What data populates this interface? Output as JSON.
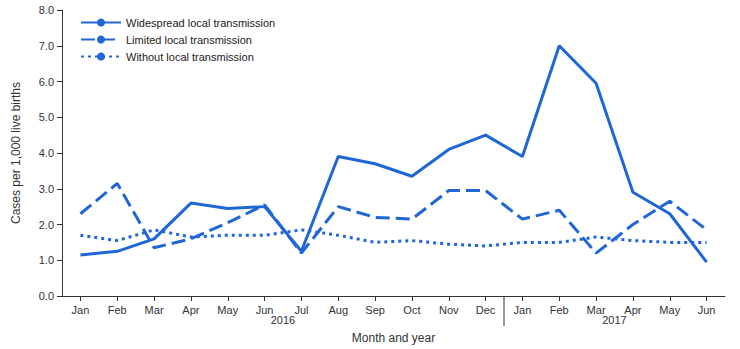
{
  "chart_data": {
    "type": "line",
    "x_label": "Month and year",
    "y_label": "Cases per 1,000 live births",
    "categories": [
      "Jan",
      "Feb",
      "Mar",
      "Apr",
      "May",
      "Jun",
      "Jul",
      "Aug",
      "Sep",
      "Oct",
      "Nov",
      "Dec",
      "Jan",
      "Feb",
      "Mar",
      "Apr",
      "May",
      "Jun"
    ],
    "x_groups": [
      {
        "label": "2016",
        "span": 12
      },
      {
        "label": "2017",
        "span": 6
      }
    ],
    "series": [
      {
        "name": "Widespread local transmission",
        "color": "#1f66d6",
        "line_style": "solid",
        "values": [
          1.15,
          1.25,
          1.6,
          2.6,
          2.45,
          2.5,
          1.25,
          3.9,
          3.7,
          3.35,
          4.1,
          4.5,
          3.9,
          7.0,
          5.95,
          2.9,
          2.3,
          0.95
        ]
      },
      {
        "name": "Limited local transmission",
        "color": "#1f66d6",
        "line_style": "dashed",
        "values": [
          2.3,
          3.15,
          1.35,
          1.6,
          2.05,
          2.55,
          1.2,
          2.5,
          2.2,
          2.15,
          2.95,
          2.95,
          2.15,
          2.4,
          1.2,
          2.0,
          2.65,
          1.85
        ]
      },
      {
        "name": "Without local transmission",
        "color": "#1f66d6",
        "line_style": "dotted",
        "values": [
          1.7,
          1.55,
          1.85,
          1.65,
          1.7,
          1.7,
          1.85,
          1.7,
          1.5,
          1.55,
          1.45,
          1.4,
          1.5,
          1.5,
          1.65,
          1.55,
          1.5,
          1.5
        ]
      }
    ],
    "ylim": [
      0,
      8
    ],
    "yticks": [
      {
        "value": 0,
        "label": "0.0"
      },
      {
        "value": 1,
        "label": "1.0"
      },
      {
        "value": 2,
        "label": "2.0"
      },
      {
        "value": 3,
        "label": "3.0"
      },
      {
        "value": 4,
        "label": "4.0"
      },
      {
        "value": 5,
        "label": "5.0"
      },
      {
        "value": 6,
        "label": "6.0"
      },
      {
        "value": 7,
        "label": "7.0"
      },
      {
        "value": 8,
        "label": "8.0"
      }
    ],
    "grid": false,
    "legend": "upper left"
  }
}
